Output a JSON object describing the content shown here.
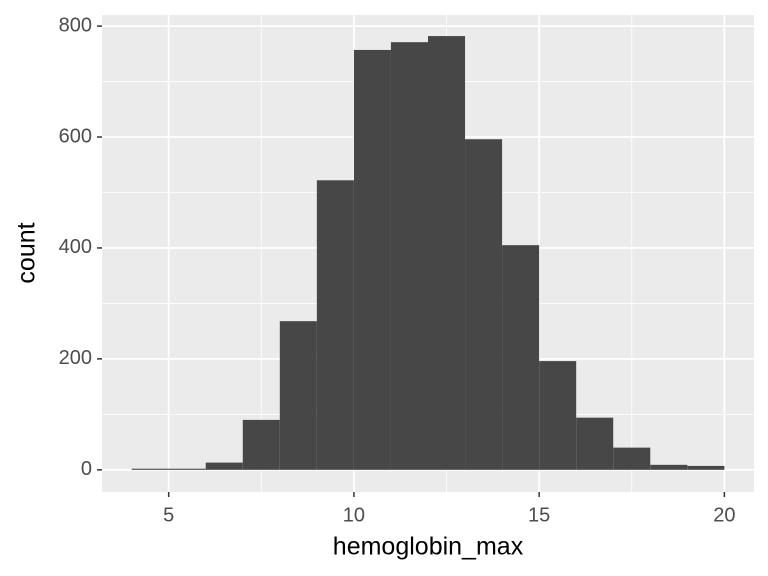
{
  "chart_data": {
    "type": "histogram",
    "x_label": "hemoglobin_max",
    "y_label": "count",
    "bins": [
      4,
      5,
      6,
      7,
      8,
      9,
      10,
      11,
      12,
      13,
      14,
      15,
      16,
      17,
      18,
      19,
      20
    ],
    "values": [
      2,
      2,
      13,
      90,
      268,
      522,
      757,
      771,
      782,
      596,
      405,
      196,
      94,
      40,
      9,
      7
    ],
    "color": "#474747",
    "xlim": [
      3.2,
      20.8
    ],
    "xticks": [
      5,
      10,
      15,
      20
    ],
    "x_minor_ticks": [
      7.5,
      12.5,
      17.5
    ],
    "ylim": [
      -40,
      820
    ],
    "yticks": [
      0,
      200,
      400,
      600,
      800
    ],
    "y_minor_ticks": [
      100,
      300,
      500,
      700
    ],
    "grid": true
  }
}
